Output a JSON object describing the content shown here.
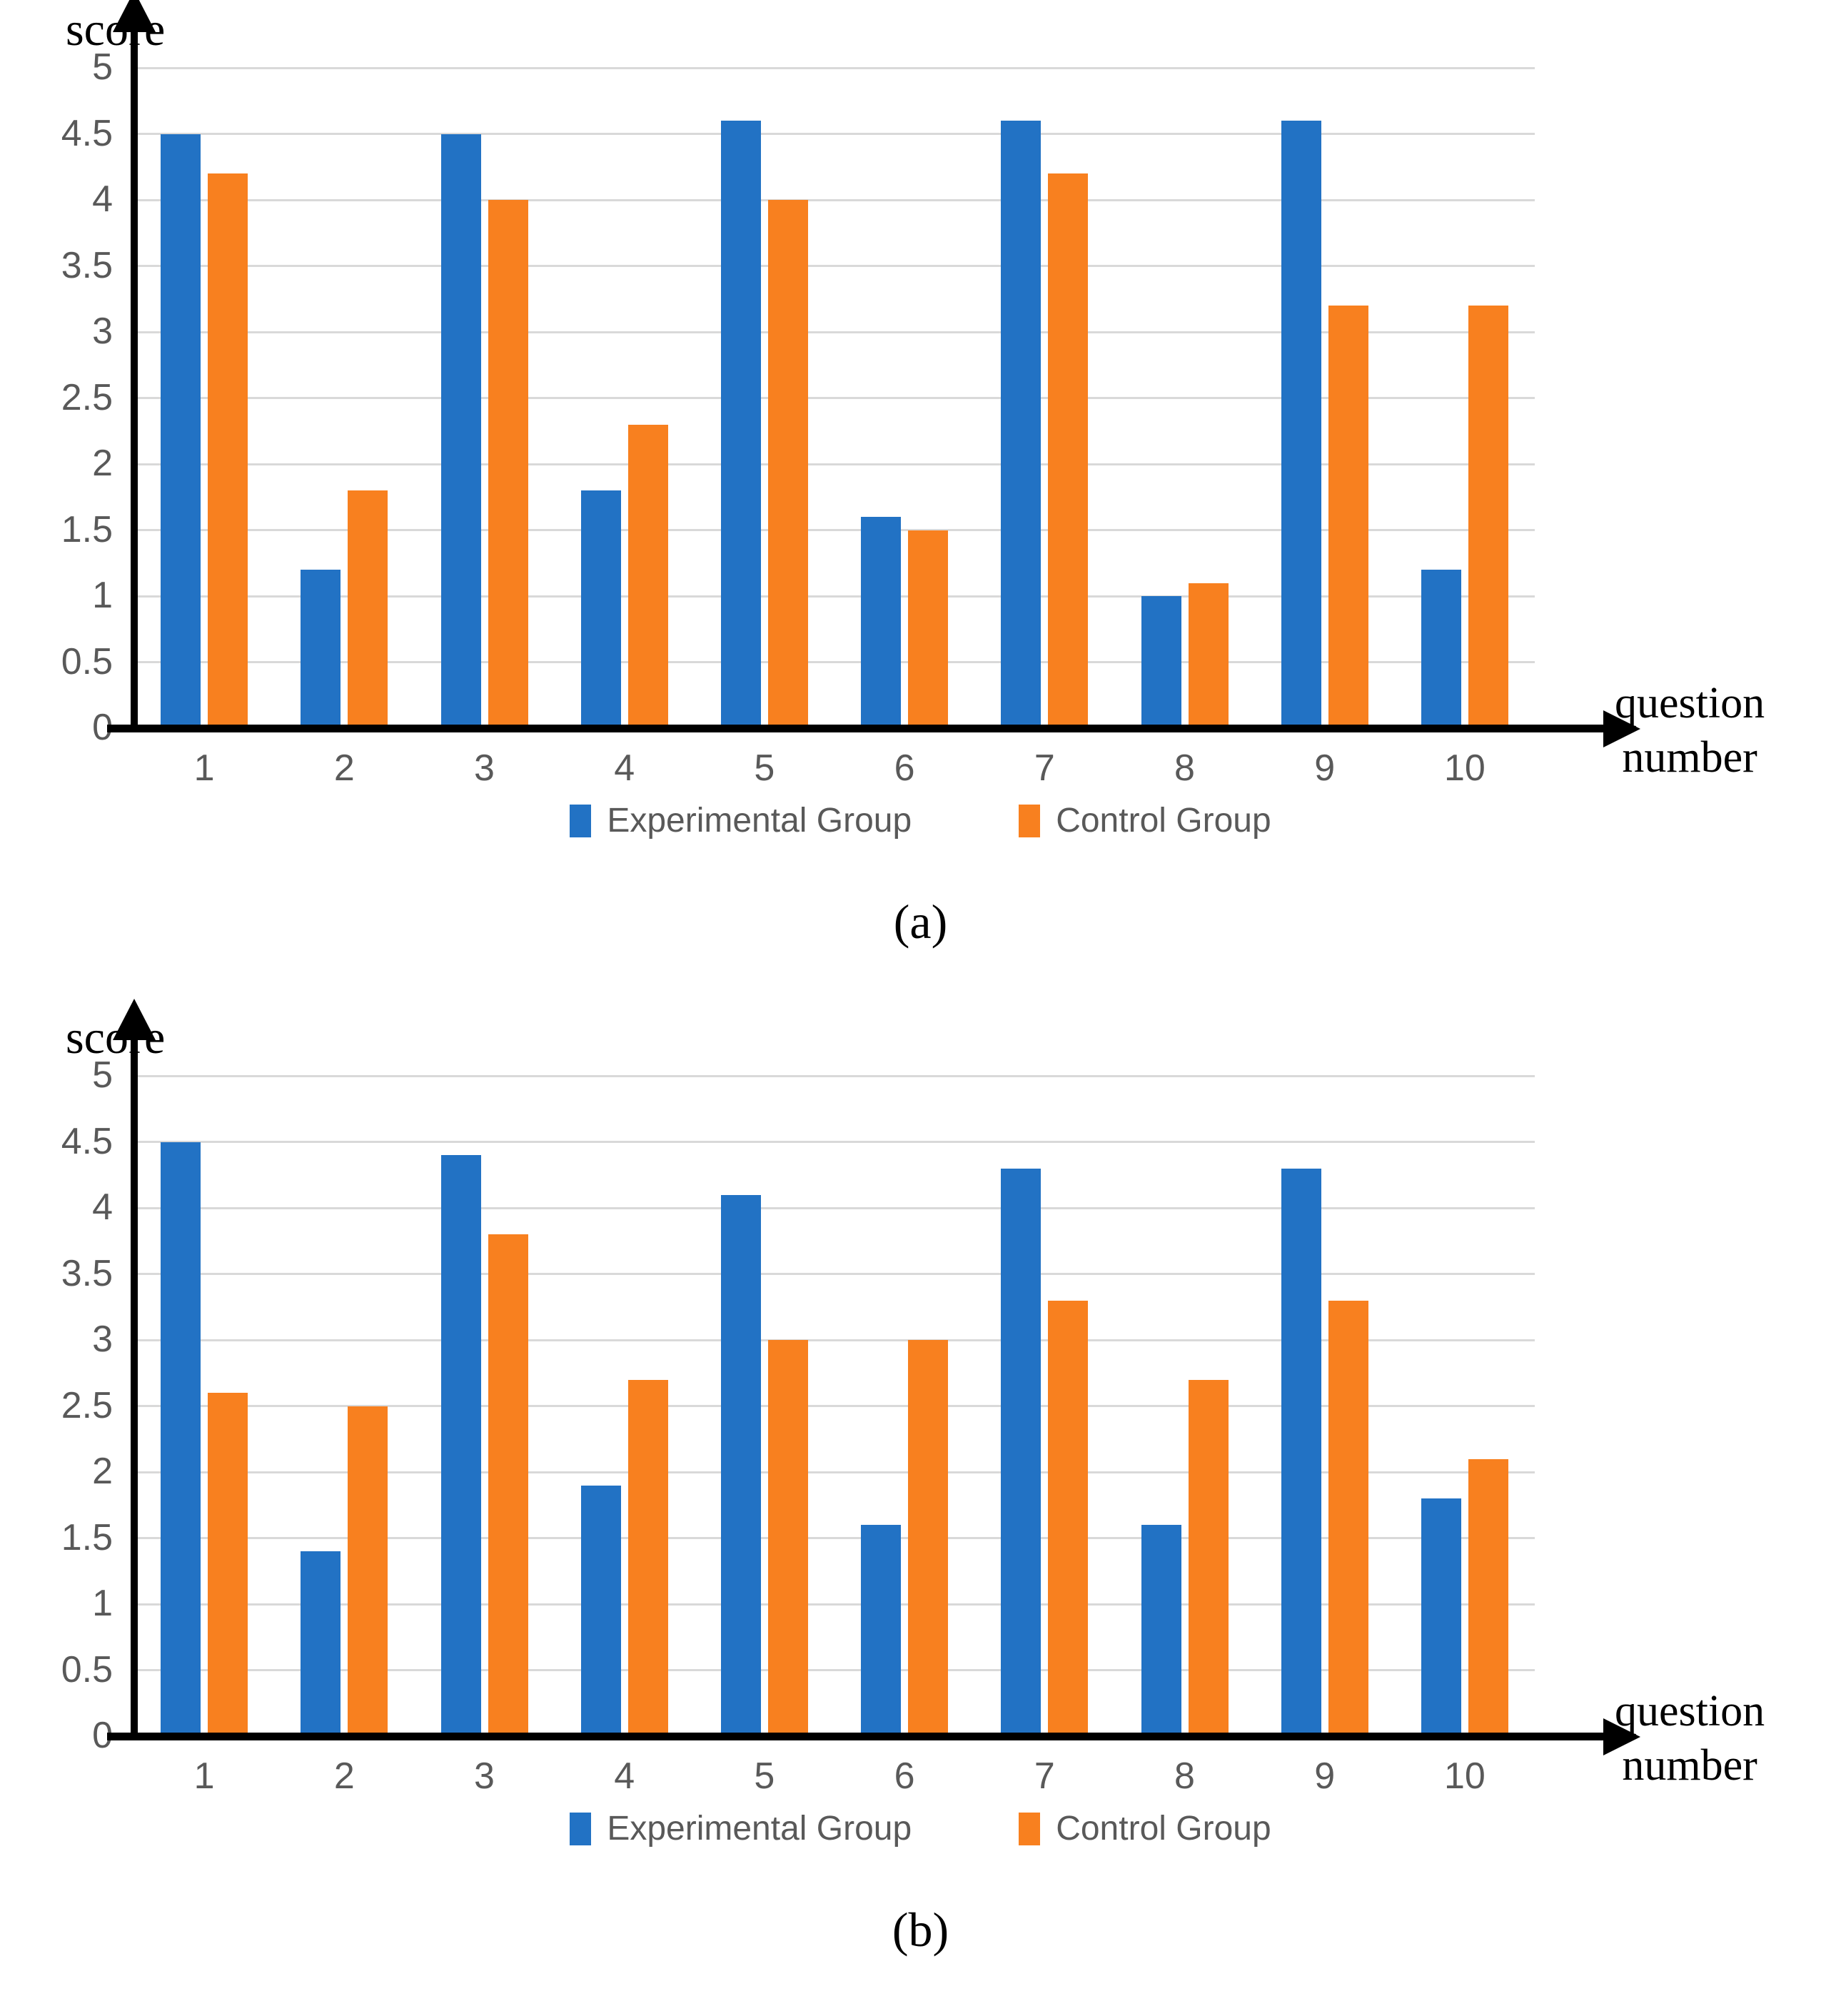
{
  "colors": {
    "experimental": "#2272C4",
    "control": "#F8801F",
    "gridline": "#D9D9D9",
    "axis": "#000000",
    "tick_text": "#595959",
    "legend_text": "#595959"
  },
  "chart_data": [
    {
      "type": "bar",
      "caption": "(a)",
      "y_axis_title": "score",
      "x_axis_title_line1": "question",
      "x_axis_title_line2": "number",
      "ylim": [
        0,
        5
      ],
      "grid": "horizontal",
      "legend_position": "bottom-center",
      "y_ticks": [
        {
          "label": "0",
          "value": 0
        },
        {
          "label": "0.5",
          "value": 0.5
        },
        {
          "label": "1",
          "value": 1
        },
        {
          "label": "1.5",
          "value": 1.5
        },
        {
          "label": "2",
          "value": 2
        },
        {
          "label": "2.5",
          "value": 2.5
        },
        {
          "label": "3",
          "value": 3
        },
        {
          "label": "3.5",
          "value": 3.5
        },
        {
          "label": "4",
          "value": 4
        },
        {
          "label": "4.5",
          "value": 4.5
        },
        {
          "label": "5",
          "value": 5
        }
      ],
      "categories": [
        "1",
        "2",
        "3",
        "4",
        "5",
        "6",
        "7",
        "8",
        "9",
        "10"
      ],
      "series": [
        {
          "name": "Experimental Group",
          "color_key": "experimental",
          "values": [
            4.5,
            1.2,
            4.5,
            1.8,
            4.6,
            1.6,
            4.6,
            1.0,
            4.6,
            1.2
          ]
        },
        {
          "name": "Control Group",
          "color_key": "control",
          "values": [
            4.2,
            1.8,
            4.0,
            2.3,
            4.0,
            1.5,
            4.2,
            1.1,
            3.2,
            3.2
          ]
        }
      ]
    },
    {
      "type": "bar",
      "caption": "(b)",
      "y_axis_title": "score",
      "x_axis_title_line1": "question",
      "x_axis_title_line2": "number",
      "ylim": [
        0,
        5
      ],
      "grid": "horizontal",
      "legend_position": "bottom-center",
      "y_ticks": [
        {
          "label": "0",
          "value": 0
        },
        {
          "label": "0.5",
          "value": 0.5
        },
        {
          "label": "1",
          "value": 1
        },
        {
          "label": "1.5",
          "value": 1.5
        },
        {
          "label": "2",
          "value": 2
        },
        {
          "label": "2.5",
          "value": 2.5
        },
        {
          "label": "3",
          "value": 3
        },
        {
          "label": "3.5",
          "value": 3.5
        },
        {
          "label": "4",
          "value": 4
        },
        {
          "label": "4.5",
          "value": 4.5
        },
        {
          "label": "5",
          "value": 5
        }
      ],
      "categories": [
        "1",
        "2",
        "3",
        "4",
        "5",
        "6",
        "7",
        "8",
        "9",
        "10"
      ],
      "series": [
        {
          "name": "Experimental Group",
          "color_key": "experimental",
          "values": [
            4.5,
            1.4,
            4.4,
            1.9,
            4.1,
            1.6,
            4.3,
            1.6,
            4.3,
            1.8
          ]
        },
        {
          "name": "Control Group",
          "color_key": "control",
          "values": [
            2.6,
            2.5,
            3.8,
            2.7,
            3.0,
            3.0,
            3.3,
            2.7,
            3.3,
            2.1
          ]
        }
      ]
    }
  ]
}
